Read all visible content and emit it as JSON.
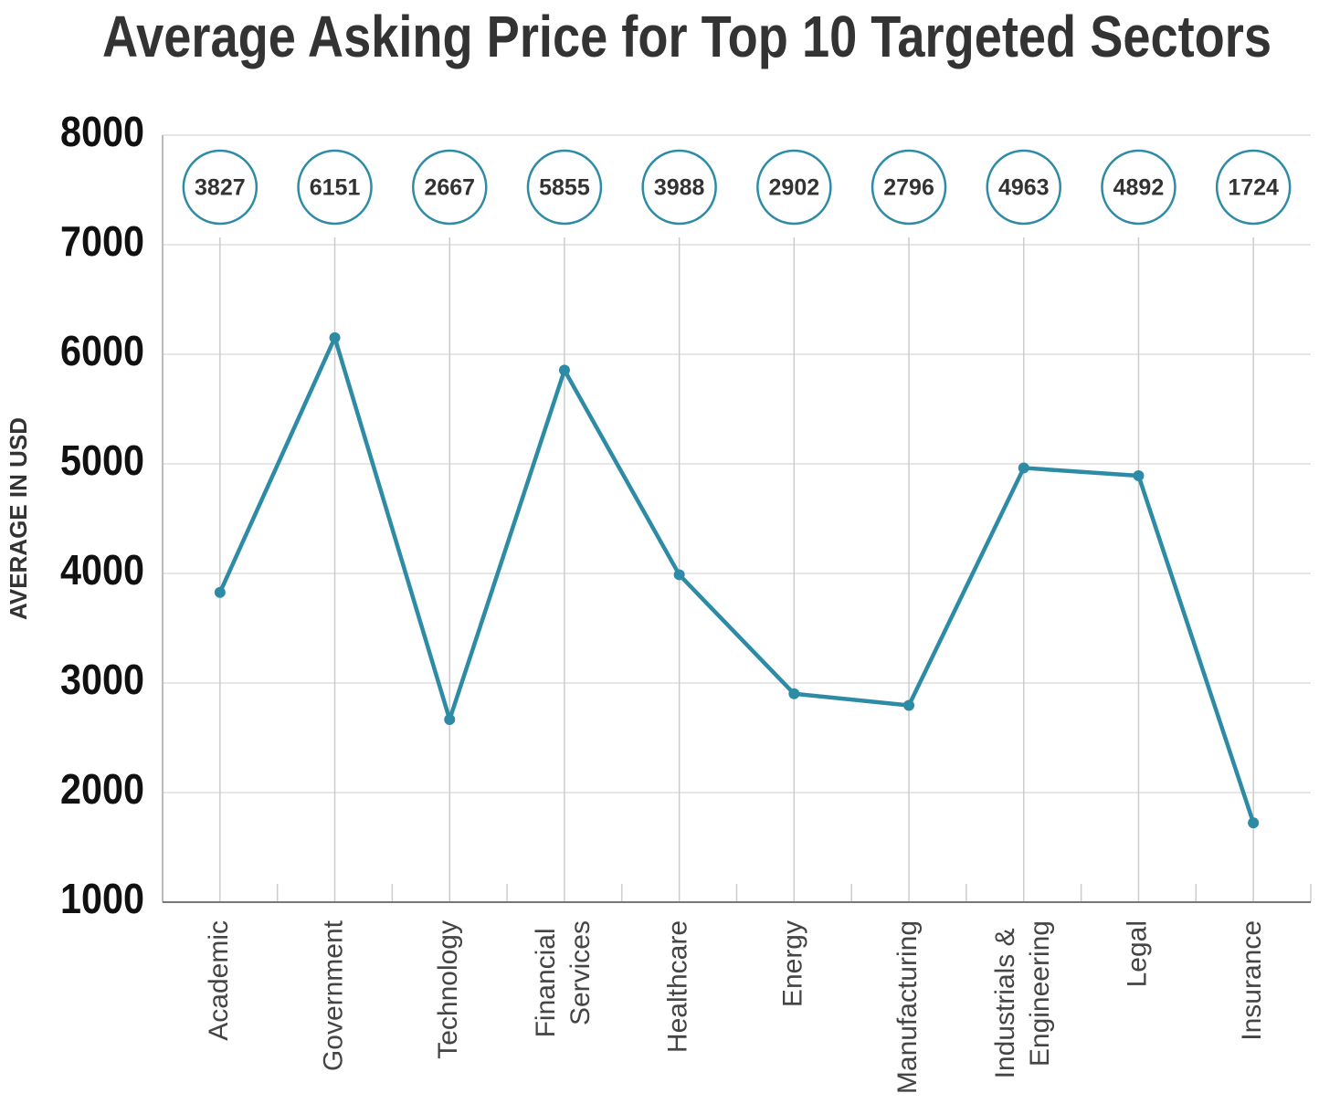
{
  "chart_data": {
    "type": "line",
    "title": "Average Asking Price for Top 10 Targeted Sectors",
    "y_label": "AVERAGE IN USD",
    "categories": [
      "Academic",
      "Government",
      "Technology",
      "Financial Services",
      "Healthcare",
      "Energy",
      "Manufacturing",
      "Industrials & Engineering",
      "Legal",
      "Insurance"
    ],
    "series": [
      {
        "name": "Average asking price",
        "color": "#2e8ba5",
        "values": [
          3827,
          6151,
          2667,
          5855,
          3988,
          2902,
          2796,
          4963,
          4892,
          1724
        ]
      }
    ],
    "ylim": [
      1000,
      8000
    ],
    "yticks": [
      1000,
      2000,
      3000,
      4000,
      5000,
      6000,
      7000,
      8000
    ],
    "grid": true
  }
}
